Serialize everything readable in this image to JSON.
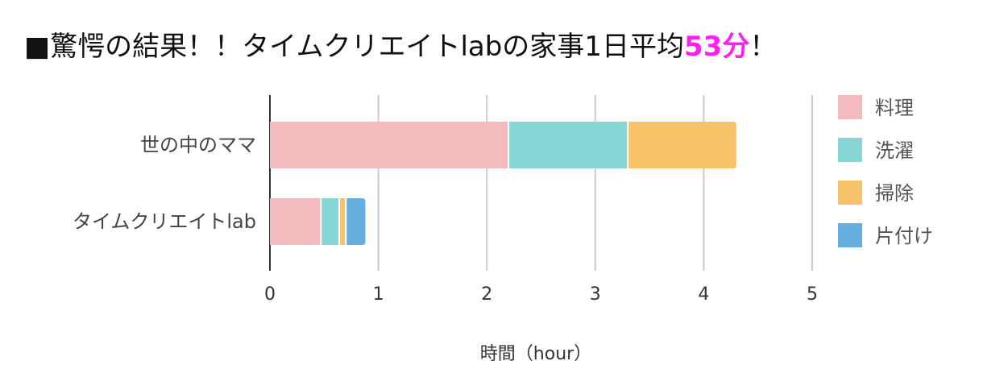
{
  "title": {
    "prefix": "■驚愕の結果！！タイムクリエイトlabの家事1日平均",
    "highlight": "53分",
    "suffix": "！",
    "highlight_color": "#ff1ff0"
  },
  "chart_data": {
    "type": "bar",
    "orientation": "horizontal",
    "stacked": true,
    "categories": [
      "世の中のママ",
      "タイムクリエイトlab"
    ],
    "series": [
      {
        "name": "料理",
        "color": "#f4bbbe",
        "values": [
          2.2,
          0.47
        ]
      },
      {
        "name": "洗濯",
        "color": "#86d6d6",
        "values": [
          1.1,
          0.17
        ]
      },
      {
        "name": "掃除",
        "color": "#f6c26a",
        "values": [
          1.0,
          0.06
        ]
      },
      {
        "name": "片付け",
        "color": "#66aee0",
        "values": [
          0.0,
          0.18
        ]
      }
    ],
    "xlabel": "時間（hour）",
    "ylabel": "",
    "xlim": [
      0,
      5
    ],
    "xticks": [
      "0",
      "1",
      "2",
      "3",
      "4",
      "5"
    ],
    "grid": true,
    "legend_position": "right"
  }
}
